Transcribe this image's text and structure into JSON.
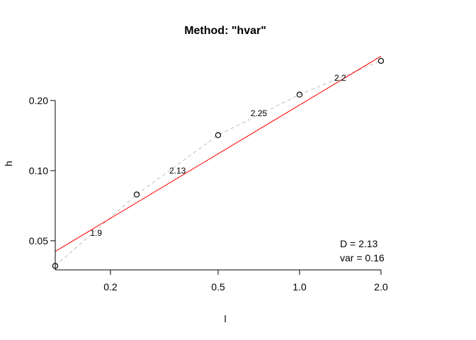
{
  "chart_data": {
    "type": "scatter",
    "title": "Method: \"hvar\"",
    "xlabel": "l",
    "ylabel": "h",
    "x_scale": "log",
    "y_scale": "log",
    "xlim": [
      0.125,
      2.05
    ],
    "ylim": [
      0.0375,
      0.3
    ],
    "x_ticks": [
      0.2,
      0.5,
      1.0,
      2.0
    ],
    "x_tick_labels": [
      "0.2",
      "0.5",
      "1.0",
      "2.0"
    ],
    "y_ticks": [
      0.05,
      0.1,
      0.2
    ],
    "y_tick_labels": [
      "0.05",
      "0.10",
      "0.20"
    ],
    "series": [
      {
        "marker": "circle",
        "x": [
          0.125,
          0.25,
          0.5,
          1.0,
          2.0
        ],
        "y": [
          0.039,
          0.079,
          0.142,
          0.212,
          0.296
        ]
      }
    ],
    "fit_line": {
      "color": "#ff0000",
      "x": [
        0.125,
        2.0
      ],
      "y": [
        0.045,
        0.31
      ]
    },
    "segment_labels": [
      {
        "x": 0.177,
        "y": 0.054,
        "text": "1.9"
      },
      {
        "x": 0.354,
        "y": 0.1,
        "text": "2.13"
      },
      {
        "x": 0.707,
        "y": 0.176,
        "text": "2.25"
      },
      {
        "x": 1.414,
        "y": 0.25,
        "text": "2.2"
      }
    ],
    "annotations": [
      "D = 2.13",
      "var = 0.16"
    ],
    "colors": {
      "points": "#000000",
      "fit": "#ff0000",
      "connector": "#bebebe"
    },
    "grid": false
  }
}
